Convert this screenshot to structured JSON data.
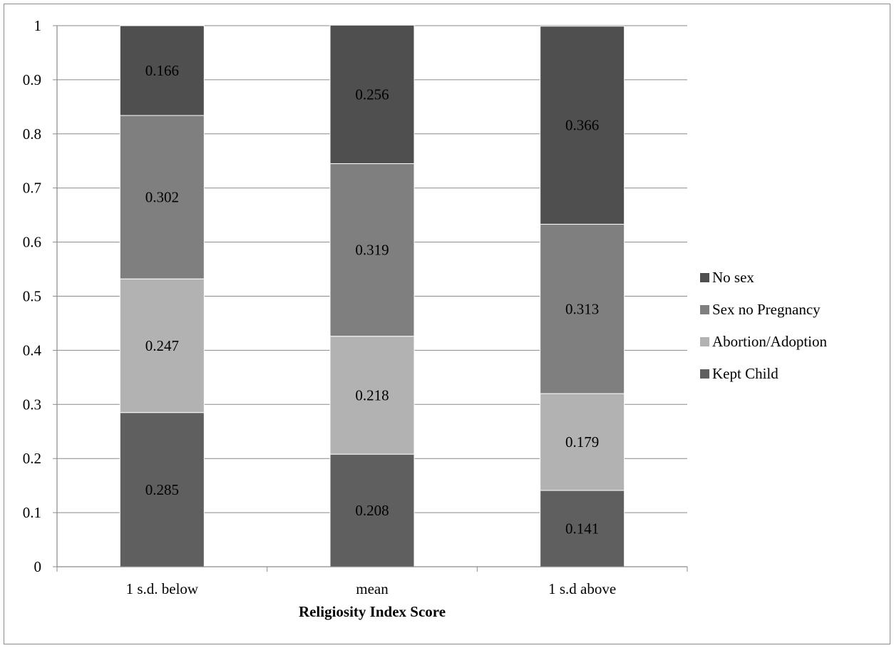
{
  "chart_data": {
    "type": "bar",
    "stacked": true,
    "title": "",
    "xlabel": "Religiosity Index Score",
    "ylabel": "",
    "ylim": [
      0,
      1
    ],
    "yticks": [
      "0",
      "0.1",
      "0.2",
      "0.3",
      "0.4",
      "0.5",
      "0.6",
      "0.7",
      "0.8",
      "0.9",
      "1"
    ],
    "grid": true,
    "legend_position": "right",
    "categories": [
      "1 s.d. below",
      "mean",
      "1 s.d above"
    ],
    "series": [
      {
        "name": "Kept Child",
        "color": "#5f5f5f",
        "values": [
          0.285,
          0.208,
          0.141
        ],
        "labels": [
          "0.285",
          "0.208",
          "0.141"
        ]
      },
      {
        "name": "Abortion/Adoption",
        "color": "#b2b2b2",
        "values": [
          0.247,
          0.218,
          0.179
        ],
        "labels": [
          "0.247",
          "0.218",
          "0.179"
        ]
      },
      {
        "name": "Sex no Pregnancy",
        "color": "#7f7f7f",
        "values": [
          0.302,
          0.319,
          0.313
        ],
        "labels": [
          "0.302",
          "0.319",
          "0.313"
        ]
      },
      {
        "name": "No sex",
        "color": "#4f4f4f",
        "values": [
          0.166,
          0.256,
          0.366
        ],
        "labels": [
          "0.166",
          "0.256",
          "0.366"
        ]
      }
    ],
    "legend_order": [
      "No sex",
      "Sex no Pregnancy",
      "Abortion/Adoption",
      "Kept Child"
    ]
  }
}
